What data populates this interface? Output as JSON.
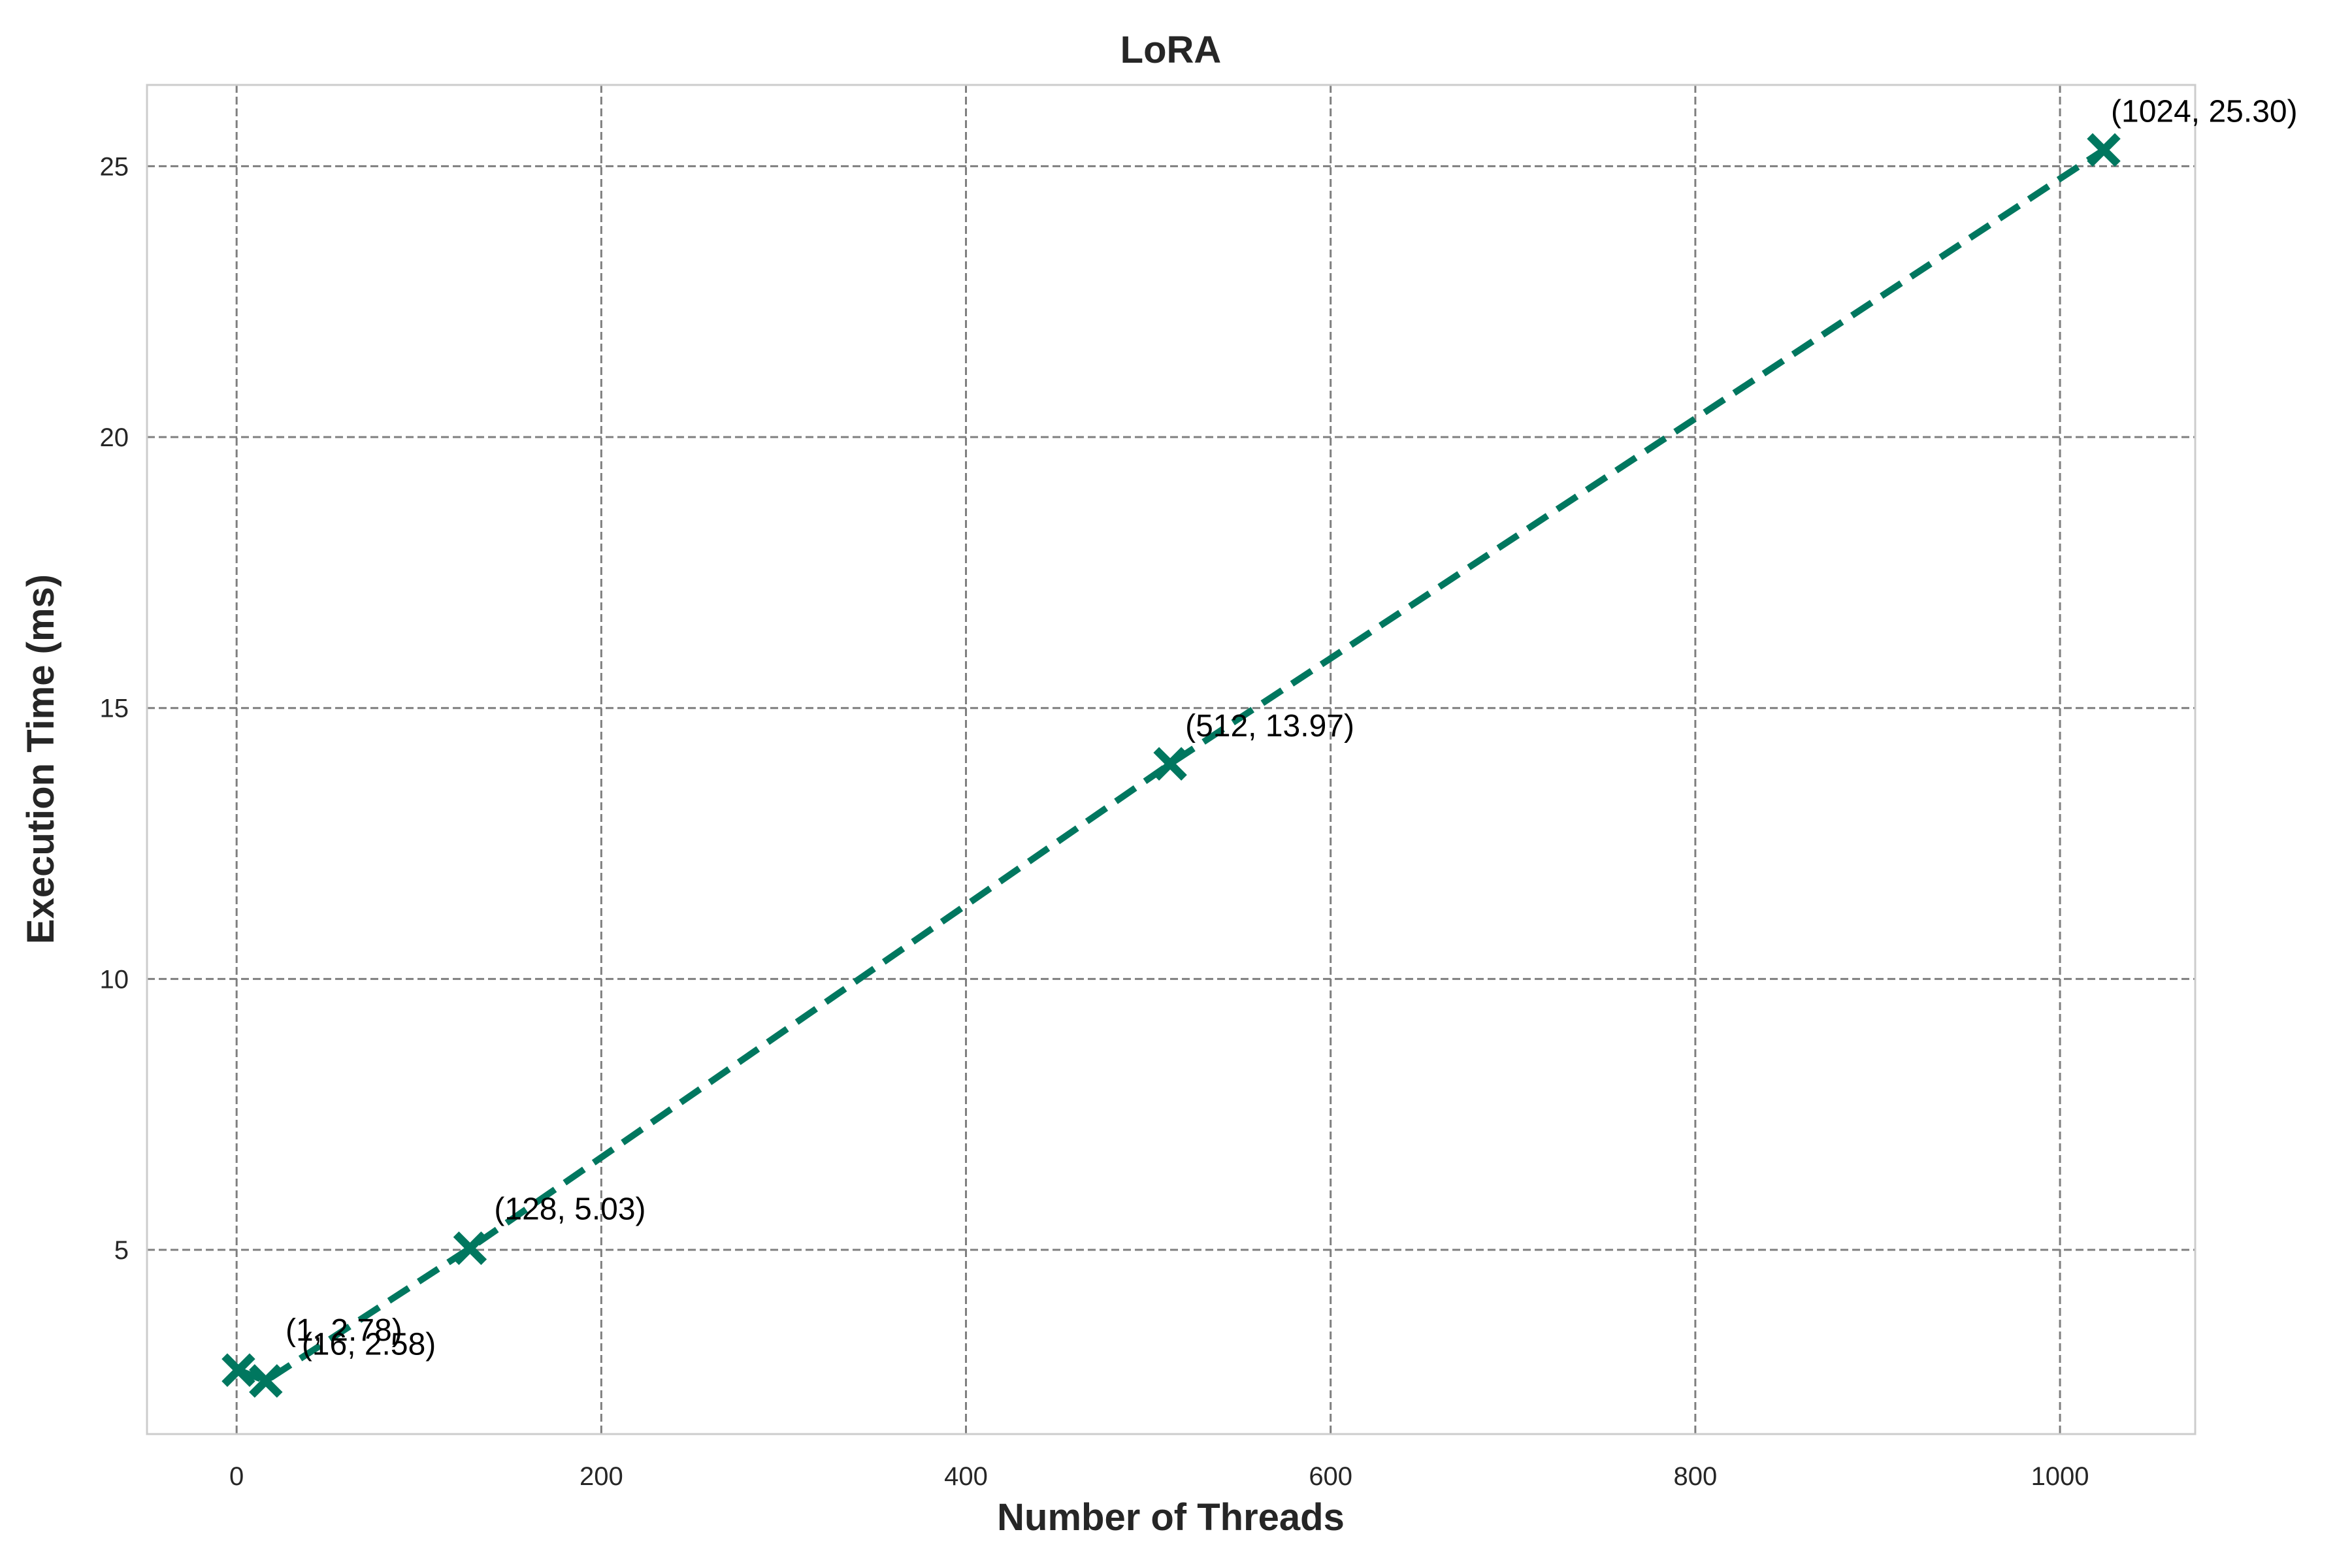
{
  "chart_data": {
    "type": "line",
    "title": "LoRA",
    "xlabel": "Number of Threads",
    "ylabel": "Execution Time (ms)",
    "xlim": [
      -49.15,
      1074.15
    ],
    "ylim": [
      1.6,
      26.5
    ],
    "xticks": [
      0,
      200,
      400,
      600,
      800,
      1000
    ],
    "yticks": [
      5,
      10,
      15,
      20,
      25
    ],
    "grid": true,
    "legend": "none",
    "series": [
      {
        "x": [
          1,
          16,
          128,
          512,
          1024
        ],
        "y": [
          2.78,
          2.58,
          5.03,
          13.97,
          25.3
        ],
        "color": "#00775F",
        "line_style": "dashed",
        "marker": "filled-x"
      }
    ],
    "annotations": [
      "(1, 2.78)",
      "(16, 2.58)",
      "(128, 5.03)",
      "(512, 13.97)",
      "(1024, 25.30)"
    ]
  }
}
